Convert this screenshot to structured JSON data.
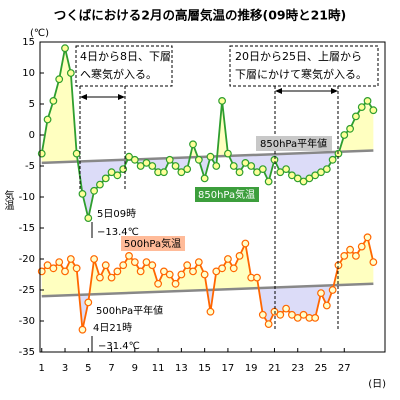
{
  "chart_data": {
    "type": "line",
    "title": "つくばにおける2月の高層気温の推移(09時と21時)",
    "y_unit": "(℃)",
    "y_label": "気温",
    "x_unit": "(日)",
    "x": [
      1,
      1.5,
      2,
      2.5,
      3,
      3.5,
      4,
      4.5,
      5,
      5.5,
      6,
      6.5,
      7,
      7.5,
      8,
      8.5,
      9,
      9.5,
      10,
      10.5,
      11,
      11.5,
      12,
      12.5,
      13,
      13.5,
      14,
      14.5,
      15,
      15.5,
      16,
      16.5,
      17,
      17.5,
      18,
      18.5,
      19,
      19.5,
      20,
      20.5,
      21,
      21.5,
      22,
      22.5,
      23,
      23.5,
      24,
      24.5,
      25,
      25.5,
      26,
      26.5,
      27,
      27.5,
      28,
      28.5,
      29,
      29.5
    ],
    "xlim": [
      0.85,
      30.5
    ],
    "xticks": [
      1,
      3,
      5,
      7,
      9,
      11,
      13,
      15,
      17,
      19,
      21,
      23,
      25,
      27
    ],
    "ylim": [
      -35,
      15
    ],
    "yticks": [
      15,
      10,
      5,
      0,
      -5,
      -10,
      -15,
      -20,
      -25,
      -30,
      -35
    ],
    "series": [
      {
        "name": "850hPa気温",
        "color": "#2e9e2e",
        "marker_fill": "#ffff99",
        "values": [
          -3,
          2.5,
          5.5,
          9,
          14,
          10,
          -3,
          -9.5,
          -13.4,
          -9,
          -8,
          -7,
          -6,
          -6.5,
          -5.5,
          -3.5,
          -4,
          -5,
          -4.5,
          -5,
          -6,
          -6,
          -4,
          -5,
          -6,
          -5.5,
          -1.5,
          -4,
          -7,
          -3.5,
          -5,
          5.5,
          -3,
          -5,
          -6,
          -4.5,
          -5,
          -6,
          -5.5,
          -7.5,
          -4,
          -6,
          -5.5,
          -6.5,
          -7,
          -7.5,
          -7,
          -6.5,
          -6,
          -5.5,
          -4,
          -3,
          0,
          1,
          3,
          4.5,
          5.5,
          4
        ]
      },
      {
        "name": "500hPa気温",
        "color": "#ff6600",
        "marker_fill": "#ffffcc",
        "values": [
          -22,
          -21,
          -21.5,
          -20.5,
          -22,
          -20,
          -21.5,
          -31.4,
          -27,
          -20,
          -23,
          -21,
          -23,
          -22,
          -21,
          -19.5,
          -20.5,
          -22,
          -20.5,
          -21,
          -24,
          -22,
          -22.5,
          -24,
          -22.5,
          -21,
          -22,
          -20.5,
          -22.5,
          -28.5,
          -22,
          -21.5,
          -20,
          -21.5,
          -19.5,
          -17.5,
          -23,
          -23,
          -29,
          -30.5,
          -28.5,
          -29,
          -28,
          -29,
          -29.5,
          -29,
          -29.5,
          -29.5,
          -25.5,
          -27.5,
          -25,
          -21,
          -19.5,
          -18.5,
          -19.5,
          -18,
          -16.5,
          -20.5
        ]
      }
    ],
    "normals": [
      {
        "name": "850hPa平年値",
        "color": "#888888",
        "x": [
          1,
          29.5
        ],
        "values": [
          -4.5,
          -2.5
        ]
      },
      {
        "name": "500hPa平年値",
        "color": "#888888",
        "x": [
          1,
          29.5
        ],
        "values": [
          -26,
          -24
        ]
      }
    ],
    "above_color": "#ffffc0",
    "below_color": "#dcdcf8",
    "annotations": [
      {
        "lines": [
          "4日から8日、下層",
          "へ寒気が入る。"
        ]
      },
      {
        "lines": [
          "20日から25日、上層から",
          "下層にかけて寒気が入る。"
        ]
      },
      {
        "lines": [
          "5日09時",
          "−13.4℃"
        ]
      },
      {
        "lines": [
          "4日21時",
          "−31.4℃"
        ]
      }
    ]
  }
}
